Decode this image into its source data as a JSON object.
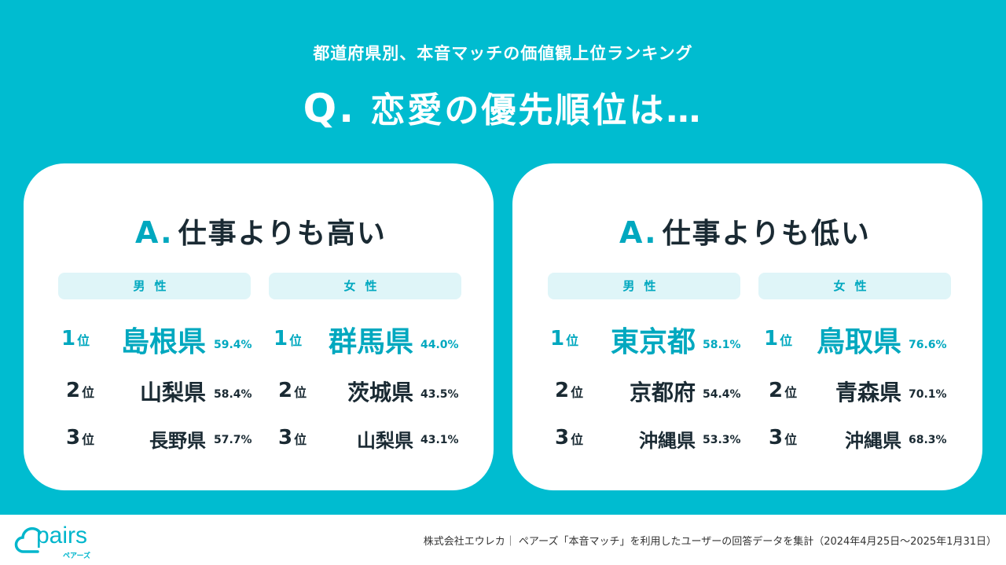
{
  "subtitle": "都道府県別、本音マッチの価値観上位ランキング",
  "question": {
    "q": "Q.",
    "text": "恋愛の優先順位は…"
  },
  "cards": [
    {
      "a_label": "A.",
      "title": "仕事よりも高い",
      "columns": [
        {
          "header": "男性",
          "ranks": [
            {
              "rank": "1",
              "unit": "位",
              "pref": "島根県",
              "pct": "59.4%"
            },
            {
              "rank": "2",
              "unit": "位",
              "pref": "山梨県",
              "pct": "58.4%"
            },
            {
              "rank": "3",
              "unit": "位",
              "pref": "長野県",
              "pct": "57.7%"
            }
          ]
        },
        {
          "header": "女性",
          "ranks": [
            {
              "rank": "1",
              "unit": "位",
              "pref": "群馬県",
              "pct": "44.0%"
            },
            {
              "rank": "2",
              "unit": "位",
              "pref": "茨城県",
              "pct": "43.5%"
            },
            {
              "rank": "3",
              "unit": "位",
              "pref": "山梨県",
              "pct": "43.1%"
            }
          ]
        }
      ]
    },
    {
      "a_label": "A.",
      "title": "仕事よりも低い",
      "columns": [
        {
          "header": "男性",
          "ranks": [
            {
              "rank": "1",
              "unit": "位",
              "pref": "東京都",
              "pct": "58.1%"
            },
            {
              "rank": "2",
              "unit": "位",
              "pref": "京都府",
              "pct": "54.4%"
            },
            {
              "rank": "3",
              "unit": "位",
              "pref": "沖縄県",
              "pct": "53.3%"
            }
          ]
        },
        {
          "header": "女性",
          "ranks": [
            {
              "rank": "1",
              "unit": "位",
              "pref": "鳥取県",
              "pct": "76.6%"
            },
            {
              "rank": "2",
              "unit": "位",
              "pref": "青森県",
              "pct": "70.1%"
            },
            {
              "rank": "3",
              "unit": "位",
              "pref": "沖縄県",
              "pct": "68.3%"
            }
          ]
        }
      ]
    }
  ],
  "footer": {
    "logo_text": "pairs",
    "logo_kana": "ペアーズ",
    "note": "株式会社エウレカ｜ ペアーズ「本音マッチ」を利用したユーザーの回答データを集計（2024年4月25日〜2025年1月31日）"
  },
  "colors": {
    "background": "#00bcd0",
    "accent": "#00a8bf",
    "header_bg": "#dff5f8",
    "text": "#1a2a33"
  }
}
